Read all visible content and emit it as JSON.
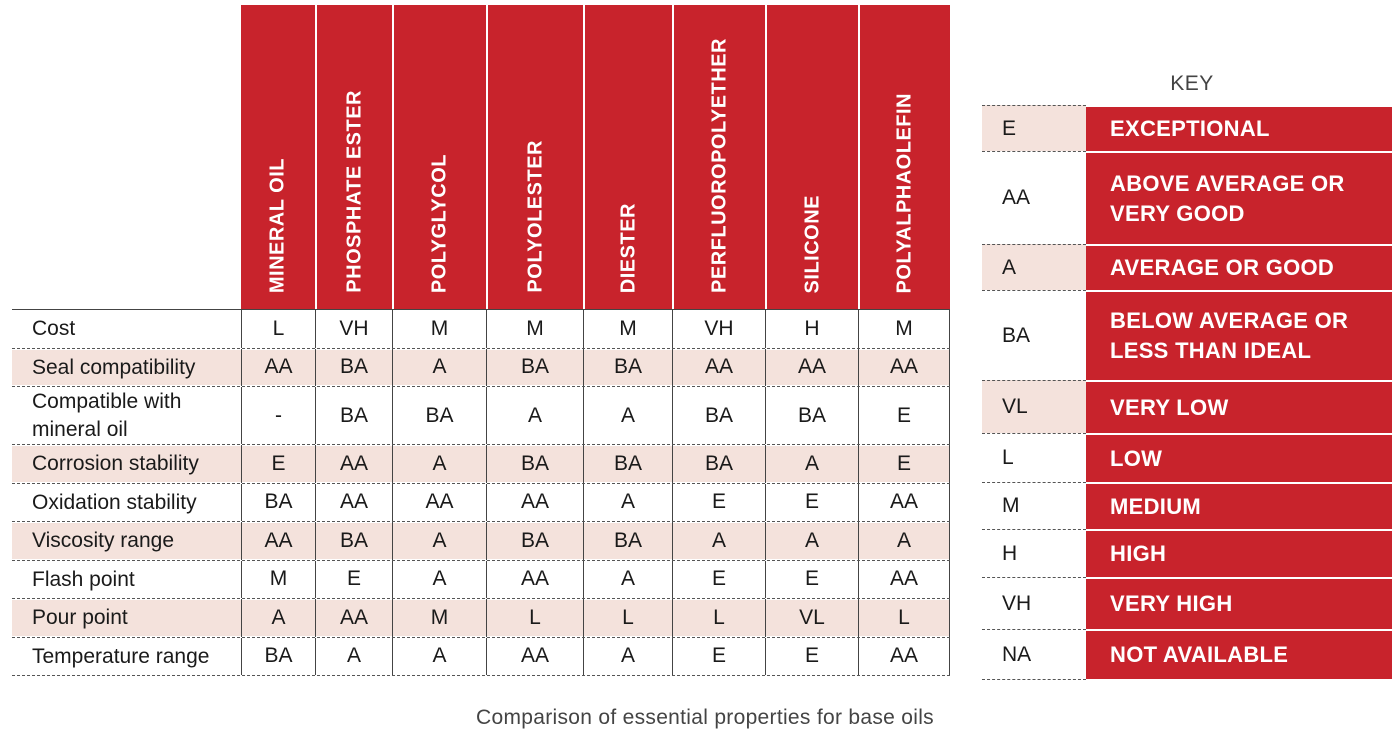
{
  "chart_data": {
    "type": "table",
    "columns": [
      "MINERAL OIL",
      "PHOSPHATE ESTER",
      "POLYGLYCOL",
      "POLYOLESTER",
      "DIESTER",
      "PERFLUOROPOLYETHER",
      "SILICONE",
      "POLYALPHAOLEFIN"
    ],
    "rows": [
      {
        "label": "Cost",
        "values": [
          "L",
          "VH",
          "M",
          "M",
          "M",
          "VH",
          "H",
          "M"
        ],
        "shaded": false
      },
      {
        "label": "Seal compatibility",
        "values": [
          "AA",
          "BA",
          "A",
          "BA",
          "BA",
          "AA",
          "AA",
          "AA"
        ],
        "shaded": true
      },
      {
        "label": "Compatible with mineral oil",
        "values": [
          "-",
          "BA",
          "BA",
          "A",
          "A",
          "BA",
          "BA",
          "E"
        ],
        "shaded": false
      },
      {
        "label": "Corrosion stability",
        "values": [
          "E",
          "AA",
          "A",
          "BA",
          "BA",
          "BA",
          "A",
          "E"
        ],
        "shaded": true
      },
      {
        "label": "Oxidation stability",
        "values": [
          "BA",
          "AA",
          "AA",
          "AA",
          "A",
          "E",
          "E",
          "AA"
        ],
        "shaded": false
      },
      {
        "label": "Viscosity range",
        "values": [
          "AA",
          "BA",
          "A",
          "BA",
          "BA",
          "A",
          "A",
          "A"
        ],
        "shaded": true
      },
      {
        "label": "Flash point",
        "values": [
          "M",
          "E",
          "A",
          "AA",
          "A",
          "E",
          "E",
          "AA"
        ],
        "shaded": false
      },
      {
        "label": "Pour point",
        "values": [
          "A",
          "AA",
          "M",
          "L",
          "L",
          "L",
          "VL",
          "L"
        ],
        "shaded": true
      },
      {
        "label": "Temperature range",
        "values": [
          "BA",
          "A",
          "A",
          "AA",
          "A",
          "E",
          "E",
          "AA"
        ],
        "shaded": false
      }
    ],
    "header_color": "#c8232c",
    "shade_color": "#f4e2dc"
  },
  "key": {
    "title": "KEY",
    "entries": [
      {
        "abbr": "E",
        "desc": "EXCEPTIONAL",
        "shaded": true
      },
      {
        "abbr": "AA",
        "desc": "ABOVE AVERAGE OR VERY GOOD",
        "shaded": false
      },
      {
        "abbr": "A",
        "desc": "AVERAGE OR GOOD",
        "shaded": true
      },
      {
        "abbr": "BA",
        "desc": "BELOW AVERAGE OR LESS THAN IDEAL",
        "shaded": false
      },
      {
        "abbr": "VL",
        "desc": "VERY LOW",
        "shaded": true
      },
      {
        "abbr": "L",
        "desc": "LOW",
        "shaded": false
      },
      {
        "abbr": "M",
        "desc": "MEDIUM",
        "shaded": false
      },
      {
        "abbr": "H",
        "desc": "HIGH",
        "shaded": false
      },
      {
        "abbr": "VH",
        "desc": "VERY HIGH",
        "shaded": false
      },
      {
        "abbr": "NA",
        "desc": "NOT AVAILABLE",
        "shaded": false
      }
    ]
  },
  "caption": "Comparison of essential properties for base oils"
}
